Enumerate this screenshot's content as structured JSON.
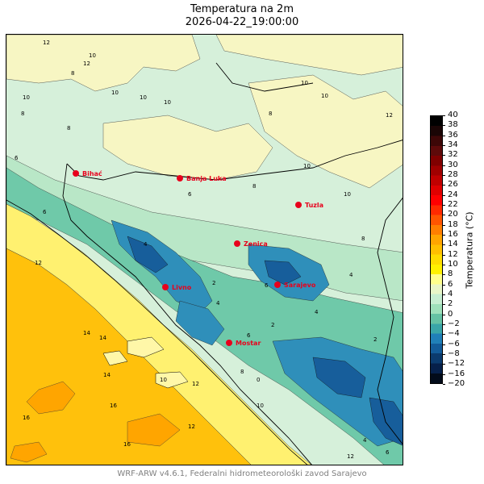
{
  "title": "Temperatura na 2m",
  "subtitle": "2026-04-22_19:00:00",
  "footer": "WRF-ARW v4.6.1, Federalni hidrometeorološki zavod Sarajevo",
  "colorbar": {
    "label": "Temperatura (°C)",
    "min": -20,
    "max": 40,
    "ticks": [
      40,
      38,
      36,
      34,
      32,
      30,
      28,
      26,
      24,
      22,
      20,
      18,
      16,
      14,
      12,
      10,
      8,
      6,
      4,
      2,
      0,
      -2,
      -4,
      -6,
      -8,
      -12,
      -16,
      -20
    ],
    "tick_labels": [
      "40",
      "38",
      "36",
      "34",
      "32",
      "30",
      "28",
      "26",
      "24",
      "22",
      "20",
      "18",
      "16",
      "14",
      "12",
      "10",
      "8",
      "6",
      "4",
      "2",
      "0",
      "−2",
      "−4",
      "−6",
      "−8",
      "−12",
      "−16",
      "−20"
    ],
    "colors": [
      "#000000",
      "#1a0505",
      "#3d0707",
      "#5e0a0a",
      "#800000",
      "#a00000",
      "#c00000",
      "#e00000",
      "#ff0000",
      "#ff2a00",
      "#ff5500",
      "#ff7f00",
      "#ffa500",
      "#ffc000",
      "#ffdd00",
      "#fff200",
      "#ffff8c",
      "#e9f6c8",
      "#c7eed2",
      "#9fe0bb",
      "#66c2a4",
      "#3aa6a8",
      "#2080b8",
      "#135c9a",
      "#0b3b6e",
      "#06204a",
      "#020b1a"
    ]
  },
  "cities": [
    {
      "name": "Bihać"
    },
    {
      "name": "Banja Luka"
    },
    {
      "name": "Tuzla"
    },
    {
      "name": "Zenica"
    },
    {
      "name": "Livno"
    },
    {
      "name": "Sarajevo"
    },
    {
      "name": "Mostar"
    }
  ],
  "contour_labels": [
    "12",
    "10",
    "8",
    "10",
    "10",
    "10",
    "8",
    "10",
    "10",
    "12",
    "8",
    "6",
    "8",
    "10",
    "10",
    "6",
    "4",
    "2",
    "6",
    "4",
    "2",
    "4",
    "6",
    "8",
    "10",
    "12",
    "14",
    "16",
    "14",
    "12",
    "16",
    "10",
    "12",
    "4",
    "4",
    "6",
    "8",
    "10",
    "12",
    "14",
    "16",
    "0",
    "2",
    "6",
    "8",
    "12"
  ]
}
